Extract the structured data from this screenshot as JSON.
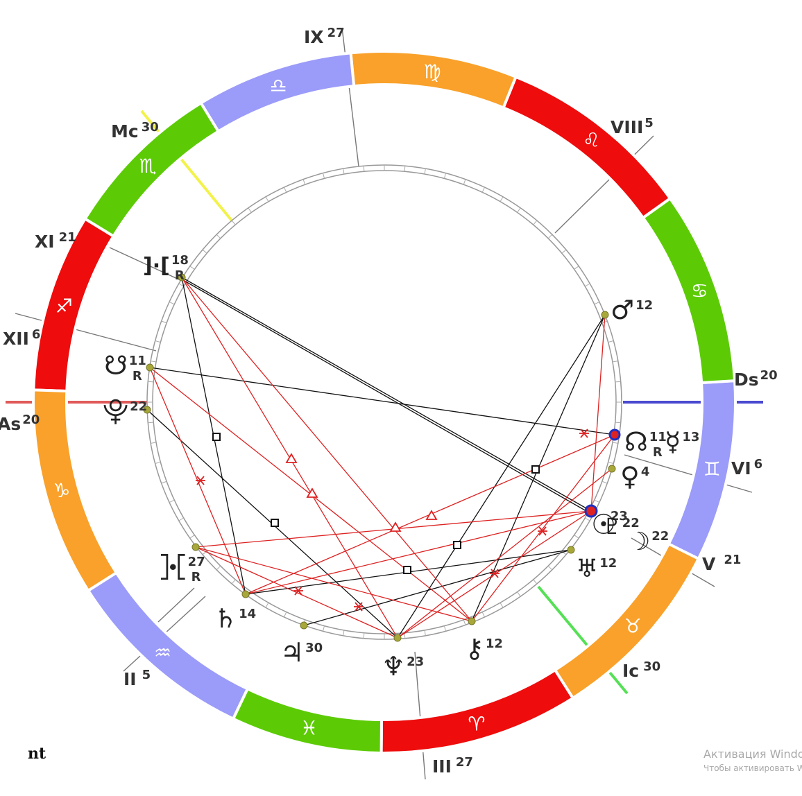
{
  "chart": {
    "signs": [
      {
        "name": "aries",
        "glyph": "♈",
        "color": "#ee0c0c"
      },
      {
        "name": "taurus",
        "glyph": "♉",
        "color": "#f9a12a"
      },
      {
        "name": "gemini",
        "glyph": "♊",
        "color": "#9b9bf9"
      },
      {
        "name": "cancer",
        "glyph": "♋",
        "color": "#5ccb06"
      },
      {
        "name": "leo",
        "glyph": "♌",
        "color": "#ee0c0c"
      },
      {
        "name": "virgo",
        "glyph": "♍",
        "color": "#f9a12a"
      },
      {
        "name": "libra",
        "glyph": "♎",
        "color": "#9b9bf9"
      },
      {
        "name": "scorpio",
        "glyph": "♏",
        "color": "#5ccb06"
      },
      {
        "name": "sagittarius",
        "glyph": "♐",
        "color": "#ee0c0c"
      },
      {
        "name": "capricorn",
        "glyph": "♑",
        "color": "#f9a12a"
      },
      {
        "name": "aquarius",
        "glyph": "♒",
        "color": "#9b9bf9"
      },
      {
        "name": "pisces",
        "glyph": "♓",
        "color": "#5ccb06"
      }
    ],
    "houses": [
      {
        "name": "II",
        "deg": "5"
      },
      {
        "name": "III",
        "deg": "27"
      },
      {
        "name": "V",
        "deg": "21"
      },
      {
        "name": "VI",
        "deg": "6"
      },
      {
        "name": "VIII",
        "deg": "5"
      },
      {
        "name": "IX",
        "deg": "27"
      },
      {
        "name": "XI",
        "deg": "21"
      },
      {
        "name": "XII",
        "deg": "6"
      }
    ],
    "angles": [
      {
        "name": "As",
        "deg": "20",
        "color": "#e05a5a"
      },
      {
        "name": "Ds",
        "deg": "20",
        "color": "#4a4ad0"
      },
      {
        "name": "Mc",
        "deg": "30",
        "color": "#f2f24a"
      },
      {
        "name": "Ic",
        "deg": "30",
        "color": "#55e055"
      }
    ],
    "planets": [
      {
        "name": "mars",
        "glyph": "♂",
        "deg": "12",
        "retro": ""
      },
      {
        "name": "north-node",
        "glyph": "☊",
        "deg": "11",
        "retro": "R"
      },
      {
        "name": "mercury",
        "glyph": "☿",
        "deg": "13",
        "retro": ""
      },
      {
        "name": "venus",
        "glyph": "♀",
        "deg": "4",
        "retro": ""
      },
      {
        "name": "sun",
        "glyph": "☉",
        "deg": "23",
        "retro": ""
      },
      {
        "name": "pluto-alt",
        "glyph": "♇",
        "deg": "22",
        "retro": ""
      },
      {
        "name": "moon",
        "glyph": "☽",
        "deg": "22",
        "retro": ""
      },
      {
        "name": "uranus",
        "glyph": "♅",
        "deg": "12",
        "retro": ""
      },
      {
        "name": "chiron",
        "glyph": "⚷",
        "deg": "12",
        "retro": ""
      },
      {
        "name": "neptune",
        "glyph": "♆",
        "deg": "23",
        "retro": ""
      },
      {
        "name": "jupiter",
        "glyph": "♃",
        "deg": "30",
        "retro": ""
      },
      {
        "name": "saturn",
        "glyph": "♄",
        "deg": "14",
        "retro": ""
      },
      {
        "name": "proserpina",
        "glyph": "⯘",
        "deg": "27",
        "retro": "R"
      },
      {
        "name": "persephone",
        "glyph": "⯓",
        "deg": "22",
        "retro": ""
      },
      {
        "name": "south-node",
        "glyph": "☋",
        "deg": "11",
        "retro": "R"
      },
      {
        "name": "vulcan",
        "glyph": "]·[",
        "deg": "18",
        "retro": "R"
      }
    ]
  },
  "footer": {
    "label": "nt"
  },
  "watermark": {
    "line1": "Активация Windows",
    "line2": "Чтобы активировать Windows"
  }
}
